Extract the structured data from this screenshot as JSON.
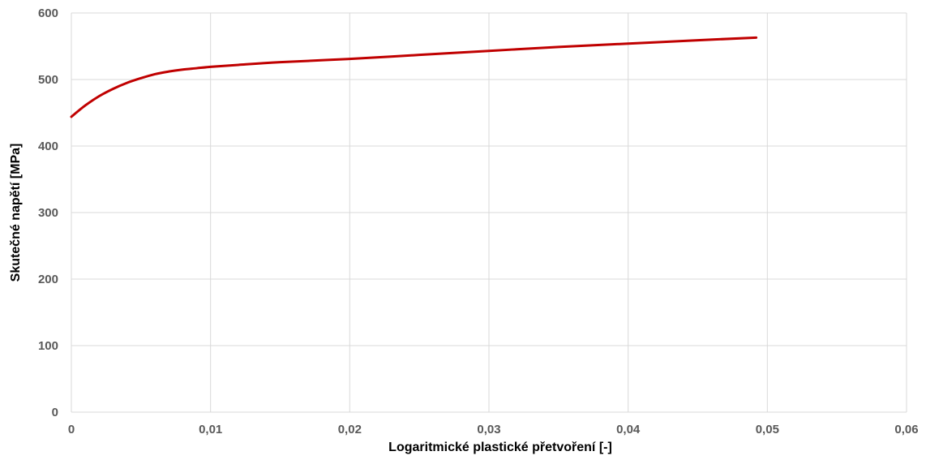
{
  "chart_data": {
    "type": "line",
    "title": "",
    "xlabel": "Logaritmické plastické přetvoření [-]",
    "ylabel": "Skutečné napětí [MPa]",
    "xlim": [
      0,
      0.06
    ],
    "ylim": [
      0,
      600
    ],
    "xticks": [
      0,
      0.01,
      0.02,
      0.03,
      0.04,
      0.05,
      0.06
    ],
    "yticks": [
      0,
      100,
      200,
      300,
      400,
      500,
      600
    ],
    "xtick_labels": [
      "0",
      "0,01",
      "0,02",
      "0,03",
      "0,04",
      "0,05",
      "0,06"
    ],
    "ytick_labels": [
      "0",
      "100",
      "200",
      "300",
      "400",
      "500",
      "600"
    ],
    "grid": true,
    "legend": "none",
    "series": [
      {
        "color": "#c00000",
        "x": [
          0,
          0.001,
          0.002,
          0.003,
          0.004,
          0.005,
          0.006,
          0.007,
          0.008,
          0.009,
          0.01,
          0.012,
          0.015,
          0.02,
          0.025,
          0.03,
          0.035,
          0.04,
          0.045,
          0.0492
        ],
        "y": [
          444,
          461,
          475,
          486,
          495,
          502,
          508,
          512,
          515,
          517,
          519,
          522,
          526,
          531,
          537,
          543,
          549,
          554,
          559,
          563
        ]
      }
    ]
  }
}
